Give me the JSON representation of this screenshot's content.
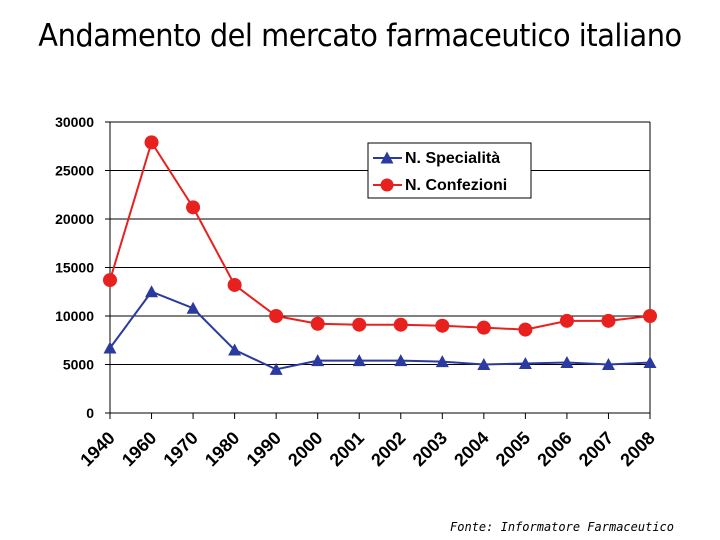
{
  "title": "Andamento del mercato farmaceutico italiano",
  "source": "Fonte: Informatore Farmaceutico",
  "colors": {
    "specialita": "#2b3a9e",
    "confezioni": "#e8201e",
    "axis": "#000000",
    "grid": "#000000"
  },
  "chart_data": {
    "type": "line",
    "title": "",
    "xlabel": "",
    "ylabel": "",
    "ylim": [
      0,
      30000
    ],
    "yticks": [
      0,
      5000,
      10000,
      15000,
      20000,
      25000,
      30000
    ],
    "categories": [
      "1940",
      "1960",
      "1970",
      "1980",
      "1990",
      "2000",
      "2001",
      "2002",
      "2003",
      "2004",
      "2005",
      "2006",
      "2007",
      "2008"
    ],
    "grid": true,
    "legend_position": "top-right",
    "series": [
      {
        "name": "N. Specialità",
        "marker": "triangle",
        "color": "#2b3a9e",
        "values": [
          6700,
          12500,
          10800,
          6500,
          4500,
          5400,
          5400,
          5400,
          5300,
          5000,
          5100,
          5200,
          5000,
          5200
        ]
      },
      {
        "name": "N. Confezioni",
        "marker": "circle",
        "color": "#e8201e",
        "values": [
          13700,
          27900,
          21200,
          13200,
          10000,
          9200,
          9100,
          9100,
          9000,
          8800,
          8600,
          9500,
          9500,
          10000
        ]
      }
    ]
  }
}
